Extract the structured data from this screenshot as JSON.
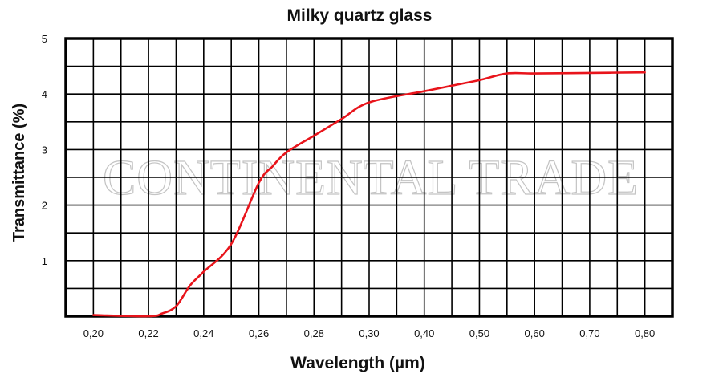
{
  "chart_data": {
    "type": "line",
    "title": "Milky quartz glass",
    "xlabel": "Wavelength (µm)",
    "ylabel": "Transmittance (%)",
    "x_ticks": [
      "0,20",
      "0,22",
      "0,24",
      "0,26",
      "0,28",
      "0,30",
      "0,40",
      "0,50",
      "0,60",
      "0,70",
      "0,80"
    ],
    "y_ticks": [
      "1",
      "2",
      "3",
      "4",
      "5"
    ],
    "ylim": [
      0,
      5
    ],
    "grid": true,
    "watermark": "CONTINENTAL TRADE",
    "line_color": "#e8141b",
    "series": [
      {
        "x": [
          "0,20",
          "0,22",
          "0,225",
          "0,23",
          "0,235",
          "0,24",
          "0,25",
          "0,26",
          "0,265",
          "0,27",
          "0,28",
          "0,29",
          "0,30",
          "0,40",
          "0,45",
          "0,50",
          "0,55",
          "0,60",
          "0,70",
          "0,80"
        ],
        "y": [
          0.02,
          0.0,
          0.05,
          0.18,
          0.55,
          0.8,
          1.3,
          2.4,
          2.7,
          2.95,
          3.25,
          3.55,
          3.85,
          4.05,
          4.15,
          4.25,
          4.37,
          4.37,
          4.38,
          4.39
        ]
      }
    ]
  }
}
